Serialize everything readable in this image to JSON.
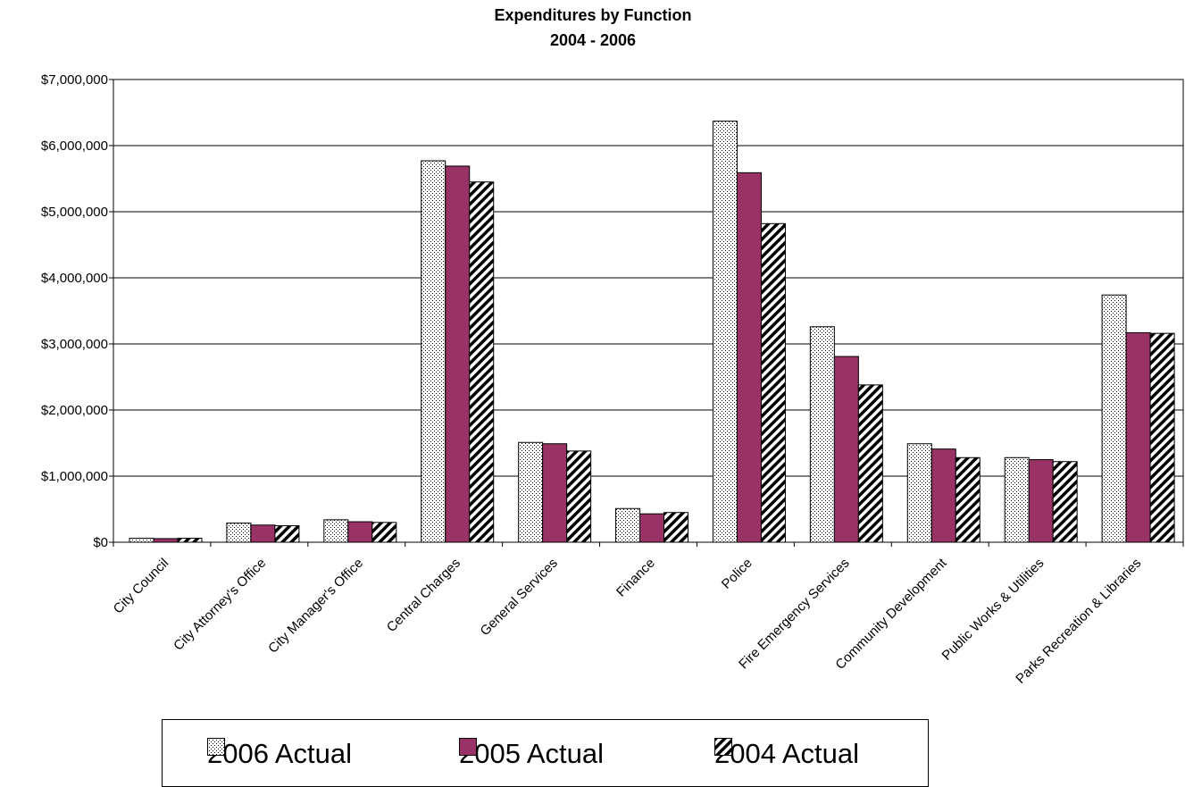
{
  "chart_data": {
    "type": "bar",
    "title": "Expenditures by Function",
    "subtitle": "2004 - 2006",
    "categories": [
      "City Council",
      "City Attorney's Office",
      "City Manager's Office",
      "Central Charges",
      "General Services",
      "Finance",
      "Police",
      "Fire Emergency Services",
      "Community Development",
      "Public Works & Utilities",
      "Parks Recreation & Libraries"
    ],
    "series": [
      {
        "name": "2006 Actual",
        "pattern": "dots",
        "color": "#ffffff",
        "values": [
          60000,
          290000,
          340000,
          5770000,
          1510000,
          510000,
          6370000,
          3260000,
          1490000,
          1280000,
          3740000
        ]
      },
      {
        "name": "2005 Actual",
        "pattern": "solid",
        "color": "#993366",
        "values": [
          55000,
          260000,
          310000,
          5690000,
          1490000,
          430000,
          5590000,
          2810000,
          1410000,
          1250000,
          3170000
        ]
      },
      {
        "name": "2004 Actual",
        "pattern": "diagonal",
        "color": "#ffffff",
        "values": [
          60000,
          250000,
          300000,
          5450000,
          1380000,
          450000,
          4820000,
          2380000,
          1280000,
          1220000,
          3160000
        ]
      }
    ],
    "xlabel": "",
    "ylabel": "",
    "ylim": [
      0,
      7000000
    ],
    "yticks": [
      0,
      1000000,
      2000000,
      3000000,
      4000000,
      5000000,
      6000000,
      7000000
    ],
    "ytick_labels": [
      "$0",
      "$1,000,000",
      "$2,000,000",
      "$3,000,000",
      "$4,000,000",
      "$5,000,000",
      "$6,000,000",
      "$7,000,000"
    ],
    "grid": true,
    "legend_position": "bottom"
  }
}
